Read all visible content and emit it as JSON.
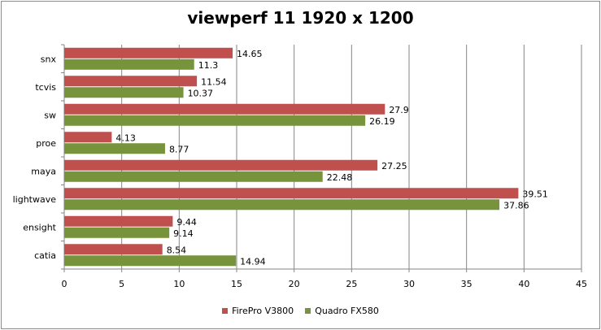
{
  "chart_data": {
    "type": "bar",
    "orientation": "horizontal",
    "title": "viewperf 11 1920 x 1200",
    "xlabel": "",
    "ylabel": "",
    "categories": [
      "snx",
      "tcvis",
      "sw",
      "proe",
      "maya",
      "lightwave",
      "ensight",
      "catia"
    ],
    "series": [
      {
        "name": "FirePro V3800",
        "color": "#c0504d",
        "values": [
          14.65,
          11.54,
          27.9,
          4.13,
          27.25,
          39.51,
          9.44,
          8.54
        ]
      },
      {
        "name": "Quadro FX580",
        "color": "#77933c",
        "values": [
          11.3,
          10.37,
          26.19,
          8.77,
          22.48,
          37.86,
          9.14,
          14.94
        ]
      }
    ],
    "xlim": [
      0,
      45
    ],
    "xticks": [
      0,
      5,
      10,
      15,
      20,
      25,
      30,
      35,
      40,
      45
    ],
    "grid": true,
    "legend": "bottom"
  }
}
